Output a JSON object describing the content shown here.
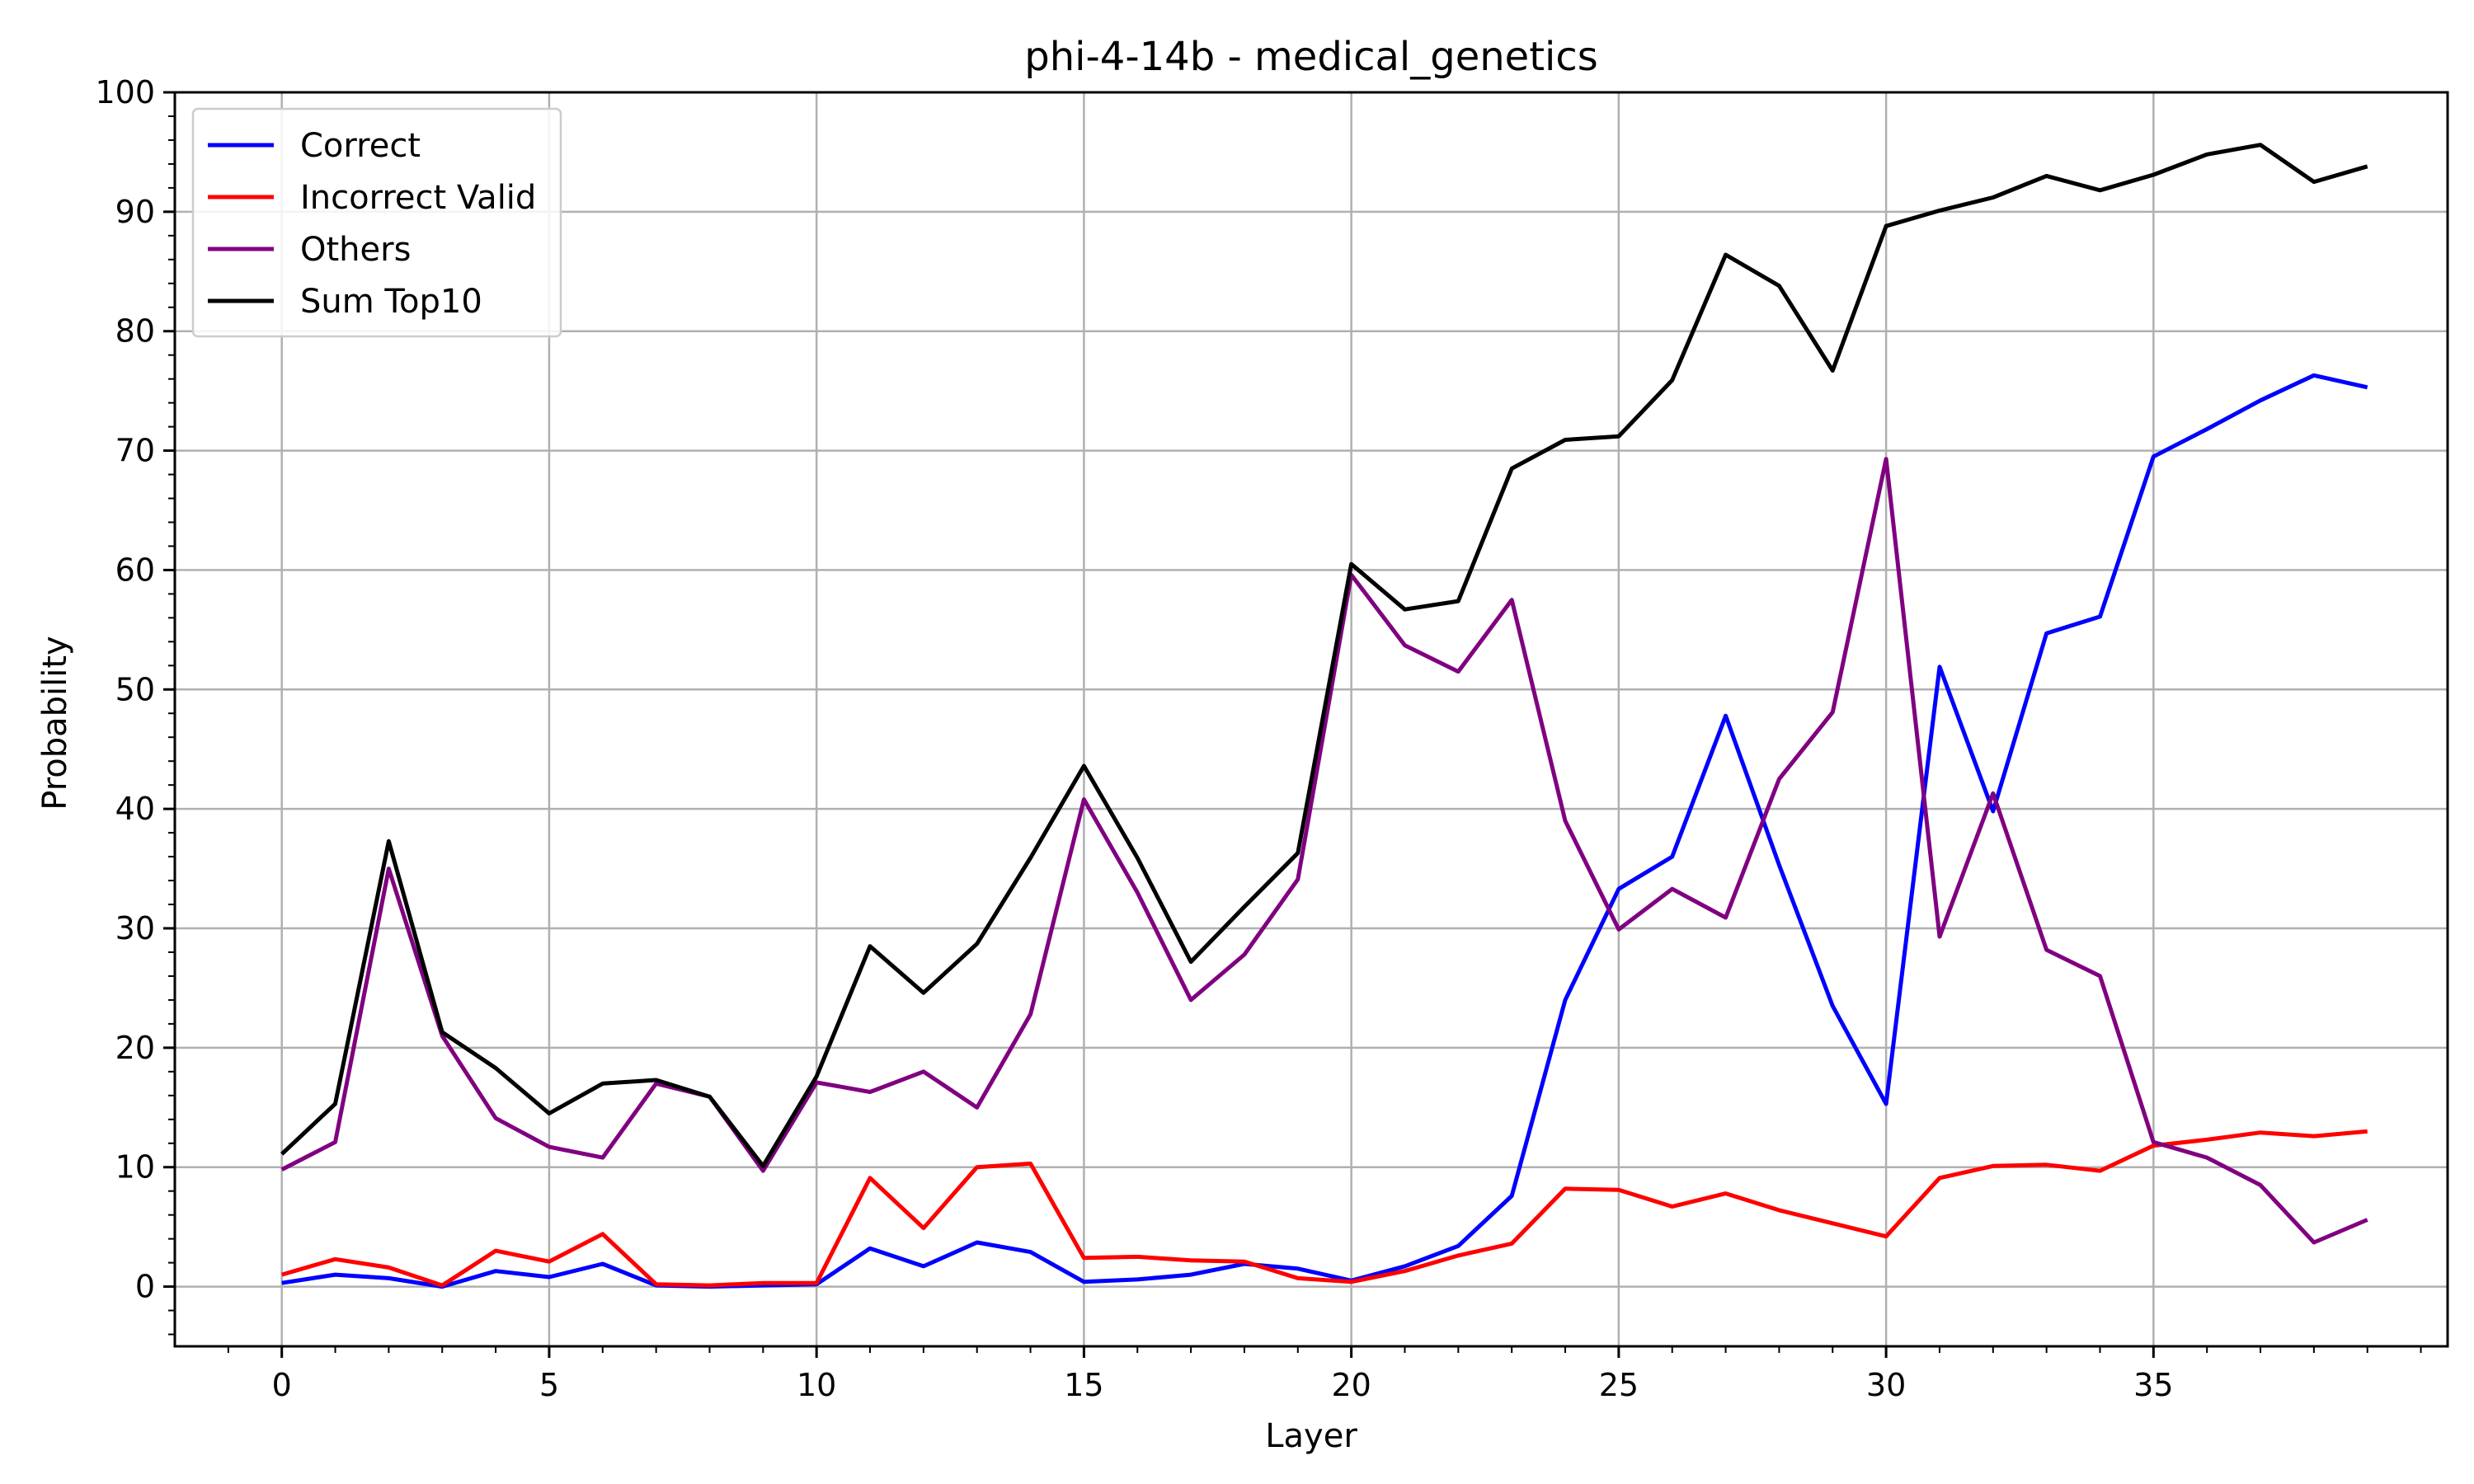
{
  "chart_data": {
    "type": "line",
    "title": "phi-4-14b - medical_genetics",
    "xlabel": "Layer",
    "ylabel": "Probability",
    "xlim": [
      -2,
      40.5
    ],
    "ylim": [
      -5,
      100
    ],
    "xticks": [
      0,
      5,
      10,
      15,
      20,
      25,
      30,
      35
    ],
    "yticks": [
      0,
      10,
      20,
      30,
      40,
      50,
      60,
      70,
      80,
      90,
      100
    ],
    "grid": true,
    "legend_position": "upper-left",
    "x": [
      0,
      1,
      2,
      3,
      4,
      5,
      6,
      7,
      8,
      9,
      10,
      11,
      12,
      13,
      14,
      15,
      16,
      17,
      18,
      19,
      20,
      21,
      22,
      23,
      24,
      25,
      26,
      27,
      28,
      29,
      30,
      31,
      32,
      33,
      34,
      35,
      36,
      37,
      38,
      39
    ],
    "series": [
      {
        "name": "Correct",
        "color": "#0000ff",
        "values": [
          0.3,
          1.0,
          0.7,
          0.0,
          1.3,
          0.8,
          1.9,
          0.1,
          0.0,
          0.1,
          0.2,
          3.2,
          1.7,
          3.7,
          2.9,
          0.4,
          0.6,
          1.0,
          1.9,
          1.5,
          0.5,
          1.7,
          3.4,
          7.6,
          24.0,
          33.3,
          36.0,
          47.8,
          35.3,
          23.5,
          15.3,
          51.9,
          39.8,
          54.7,
          56.1,
          69.5,
          71.8,
          74.2,
          76.3,
          75.3
        ]
      },
      {
        "name": "Incorrect Valid",
        "color": "#ff0000",
        "values": [
          1.0,
          2.3,
          1.6,
          0.1,
          3.0,
          2.1,
          4.4,
          0.2,
          0.1,
          0.3,
          0.3,
          9.1,
          4.9,
          10.0,
          10.3,
          2.4,
          2.5,
          2.2,
          2.1,
          0.7,
          0.4,
          1.3,
          2.6,
          3.6,
          8.2,
          8.1,
          6.7,
          7.8,
          6.4,
          5.3,
          4.2,
          9.1,
          10.1,
          10.2,
          9.7,
          11.8,
          12.3,
          12.9,
          12.6,
          13.0
        ]
      },
      {
        "name": "Others",
        "color": "#800080",
        "values": [
          9.8,
          12.1,
          35.0,
          21.0,
          14.1,
          11.7,
          10.8,
          17.0,
          15.9,
          9.7,
          17.1,
          16.3,
          18.0,
          15.0,
          22.8,
          40.8,
          33.0,
          24.0,
          27.8,
          34.1,
          59.6,
          53.7,
          51.5,
          57.5,
          39.0,
          29.9,
          33.3,
          30.9,
          42.5,
          48.1,
          69.3,
          29.3,
          41.3,
          28.2,
          26.0,
          12.1,
          10.8,
          8.5,
          3.7,
          5.6
        ]
      },
      {
        "name": "Sum Top10",
        "color": "#000000",
        "values": [
          11.1,
          15.3,
          37.3,
          21.3,
          18.3,
          14.5,
          17.0,
          17.3,
          15.9,
          10.1,
          17.6,
          28.5,
          24.6,
          28.7,
          35.9,
          43.6,
          35.9,
          27.2,
          31.8,
          36.3,
          60.5,
          56.7,
          57.4,
          68.5,
          70.9,
          71.2,
          75.9,
          86.4,
          83.8,
          76.7,
          88.8,
          90.1,
          91.2,
          93.0,
          91.8,
          93.1,
          94.8,
          95.6,
          92.5,
          93.8
        ]
      }
    ]
  }
}
